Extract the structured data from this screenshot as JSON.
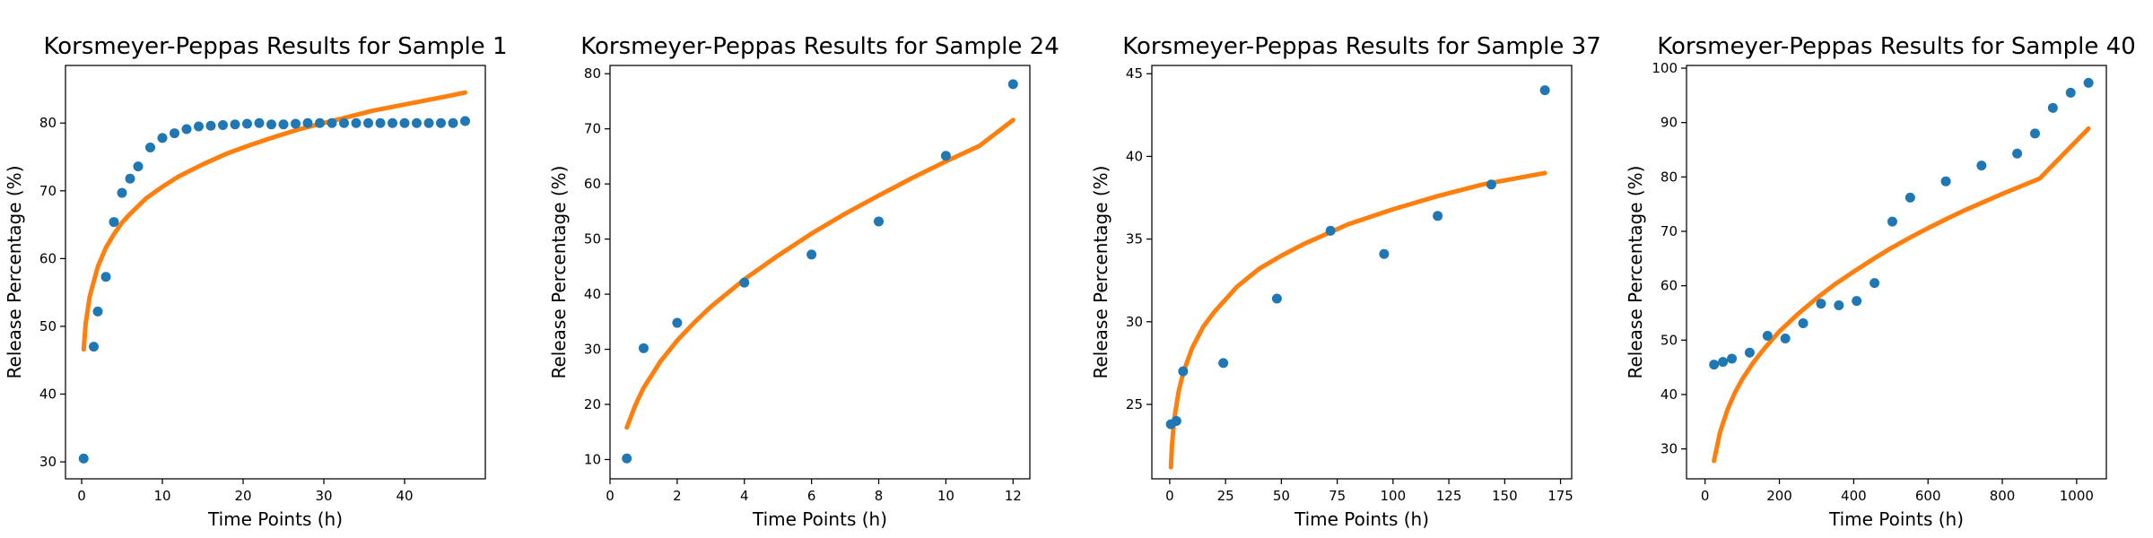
{
  "colors": {
    "observed": "#1f77b4",
    "fit": "#ff7f0e"
  },
  "chart_data": [
    {
      "type": "scatter",
      "title": "Korsmeyer-Peppas Results for Sample 1",
      "xlabel": "Time Points (h)",
      "ylabel": "Release Percentage (%)",
      "xlim": [
        -2,
        50
      ],
      "ylim": [
        27.5,
        88.5
      ],
      "xticks": [
        0,
        10,
        20,
        30,
        40
      ],
      "yticks": [
        30,
        40,
        50,
        60,
        70,
        80
      ],
      "grid": false,
      "series": [
        {
          "kind": "points",
          "x": [
            0.25,
            1.5,
            2,
            3,
            4,
            5,
            6,
            7,
            8.5,
            10,
            11.5,
            13,
            14.5,
            16,
            17.5,
            19,
            20.5,
            22,
            23.5,
            25,
            26.5,
            28,
            29.5,
            31,
            32.5,
            34,
            35.5,
            37,
            38.5,
            40,
            41.5,
            43,
            44.5,
            46,
            47.5
          ],
          "y": [
            30.5,
            47,
            52.2,
            57.3,
            65.4,
            69.7,
            71.8,
            73.6,
            76.4,
            77.8,
            78.5,
            79.1,
            79.5,
            79.6,
            79.7,
            79.8,
            79.9,
            80.0,
            79.8,
            79.8,
            79.9,
            80.0,
            80.0,
            80.0,
            80.0,
            80.0,
            80.0,
            80.0,
            80.0,
            80.0,
            80.0,
            80.0,
            80.0,
            80.0,
            80.3
          ]
        },
        {
          "kind": "fit",
          "x": [
            0.25,
            0.5,
            1,
            2,
            3,
            4,
            5,
            6,
            8,
            10,
            12,
            15,
            18,
            21,
            24,
            27,
            30,
            33,
            36,
            39,
            42,
            45,
            47.5
          ],
          "y": [
            46.6,
            50.4,
            54.4,
            58.8,
            61.6,
            63.6,
            65.3,
            66.6,
            68.9,
            70.6,
            72.1,
            73.9,
            75.5,
            76.8,
            78.0,
            79.1,
            80.0,
            80.9,
            81.8,
            82.5,
            83.2,
            83.9,
            84.5
          ]
        }
      ]
    },
    {
      "type": "scatter",
      "title": "Korsmeyer-Peppas Results for Sample 24",
      "xlabel": "Time Points (h)",
      "ylabel": "Release Percentage (%)",
      "xlim": [
        0,
        12.5
      ],
      "ylim": [
        6.5,
        81.5
      ],
      "xticks": [
        0,
        2,
        4,
        6,
        8,
        10,
        12
      ],
      "yticks": [
        10,
        20,
        30,
        40,
        50,
        60,
        70,
        80
      ],
      "grid": false,
      "series": [
        {
          "kind": "points",
          "x": [
            0.5,
            1,
            2,
            4,
            6,
            8,
            10,
            12
          ],
          "y": [
            10.2,
            30.2,
            34.8,
            42.1,
            47.2,
            53.2,
            65.1,
            78.1
          ]
        },
        {
          "kind": "fit",
          "x": [
            0.5,
            0.75,
            1,
            1.5,
            2,
            2.5,
            3,
            4,
            5,
            6,
            7,
            8,
            9,
            10,
            11,
            12
          ],
          "y": [
            15.8,
            19.8,
            23.0,
            27.8,
            31.6,
            34.8,
            37.7,
            42.7,
            47.0,
            51.0,
            54.6,
            57.9,
            61.1,
            64.1,
            66.9,
            71.6
          ]
        }
      ]
    },
    {
      "type": "scatter",
      "title": "Korsmeyer-Peppas Results for Sample 37",
      "xlabel": "Time Points (h)",
      "ylabel": "Release Percentage (%)",
      "xlim": [
        -8,
        180
      ],
      "ylim": [
        20.5,
        45.5
      ],
      "xticks": [
        0,
        25,
        50,
        75,
        100,
        125,
        150,
        175
      ],
      "yticks": [
        25,
        30,
        35,
        40,
        45
      ],
      "grid": false,
      "series": [
        {
          "kind": "points",
          "x": [
            0.5,
            3,
            6,
            24,
            48,
            72,
            96,
            120,
            144,
            168
          ],
          "y": [
            23.8,
            24.0,
            27.0,
            27.5,
            31.4,
            35.5,
            34.1,
            36.4,
            38.3,
            44.0
          ]
        },
        {
          "kind": "fit",
          "x": [
            0.5,
            1,
            2,
            4,
            6,
            10,
            15,
            20,
            30,
            40,
            50,
            60,
            80,
            100,
            120,
            140,
            168
          ],
          "y": [
            21.2,
            22.5,
            24.1,
            25.8,
            26.9,
            28.4,
            29.7,
            30.6,
            32.1,
            33.2,
            34.0,
            34.7,
            35.9,
            36.8,
            37.6,
            38.3,
            39.0
          ]
        }
      ]
    },
    {
      "type": "scatter",
      "title": "Korsmeyer-Peppas Results for Sample 40",
      "xlabel": "Time Points (h)",
      "ylabel": "Release Percentage (%)",
      "xlim": [
        -50,
        1080
      ],
      "ylim": [
        24.5,
        100.5
      ],
      "xticks": [
        0,
        200,
        400,
        600,
        800,
        1000
      ],
      "yticks": [
        30,
        40,
        50,
        60,
        70,
        80,
        90,
        100
      ],
      "grid": false,
      "series": [
        {
          "kind": "points",
          "x": [
            24,
            48,
            72,
            120,
            168,
            216,
            264,
            312,
            360,
            408,
            456,
            504,
            552,
            648,
            744,
            840,
            888,
            936,
            984,
            1032
          ],
          "y": [
            45.5,
            46.0,
            46.6,
            47.7,
            50.8,
            50.3,
            53.1,
            56.7,
            56.4,
            57.2,
            60.5,
            71.8,
            76.2,
            79.2,
            82.1,
            84.3,
            88.0,
            92.7,
            95.5,
            97.3
          ]
        },
        {
          "kind": "fit",
          "x": [
            24,
            40,
            60,
            80,
            100,
            130,
            160,
            200,
            250,
            300,
            350,
            400,
            450,
            500,
            550,
            600,
            650,
            700,
            800,
            900,
            1032
          ],
          "y": [
            27.8,
            33.0,
            37.2,
            40.3,
            42.8,
            45.9,
            48.5,
            51.6,
            54.8,
            57.7,
            60.3,
            62.6,
            64.8,
            66.9,
            68.8,
            70.6,
            72.3,
            73.9,
            76.9,
            79.7,
            88.9
          ]
        }
      ]
    }
  ]
}
